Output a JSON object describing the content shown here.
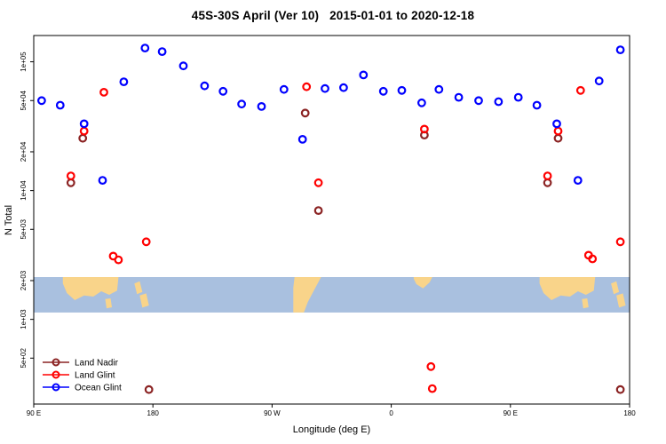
{
  "chart_data": {
    "type": "scatter",
    "title": "45S-30S April (Ver 10)   2015-01-01 to 2020-12-18",
    "xlabel": "Longitude (deg E)",
    "ylabel": "N Total",
    "x_axis": {
      "description": "longitude axis spanning 450 deg eastward from 90E, wrapping 180 -> 90W -> 0 -> 90E -> 180",
      "range_deg": [
        0,
        450
      ],
      "ticks": [
        {
          "pos": 0,
          "label": "90 E"
        },
        {
          "pos": 90,
          "label": "180"
        },
        {
          "pos": 180,
          "label": "90 W"
        },
        {
          "pos": 270,
          "label": "0"
        },
        {
          "pos": 360,
          "label": "90 E"
        },
        {
          "pos": 450,
          "label": "180"
        }
      ]
    },
    "y_axis": {
      "scale": "log",
      "range": [
        220,
        160000
      ],
      "ticks": [
        {
          "value": 500,
          "label": "5e+02"
        },
        {
          "value": 1000,
          "label": "1e+03"
        },
        {
          "value": 2000,
          "label": "2e+03"
        },
        {
          "value": 5000,
          "label": "5e+03"
        },
        {
          "value": 10000,
          "label": "1e+04"
        },
        {
          "value": 20000,
          "label": "2e+04"
        },
        {
          "value": 50000,
          "label": "5e+04"
        },
        {
          "value": 100000,
          "label": "1e+05"
        }
      ]
    },
    "series": [
      {
        "name": "Land Nadir",
        "color": "#8B2323",
        "points": [
          [
            28,
            11500
          ],
          [
            37,
            25500
          ],
          [
            87,
            285
          ],
          [
            205,
            40000
          ],
          [
            215,
            7000
          ],
          [
            295,
            27000
          ],
          [
            388,
            11500
          ],
          [
            396,
            25500
          ],
          [
            443,
            285
          ]
        ]
      },
      {
        "name": "Land Glint",
        "color": "#FF0000",
        "points": [
          [
            28,
            13000
          ],
          [
            38,
            29000
          ],
          [
            53,
            58000
          ],
          [
            60,
            3100
          ],
          [
            64,
            2900
          ],
          [
            85,
            4000
          ],
          [
            206,
            64000
          ],
          [
            215,
            11500
          ],
          [
            295,
            30000
          ],
          [
            300,
            430
          ],
          [
            301,
            290
          ],
          [
            388,
            13000
          ],
          [
            396,
            29000
          ],
          [
            413,
            60000
          ],
          [
            419,
            3150
          ],
          [
            422,
            2950
          ],
          [
            443,
            4000
          ]
        ]
      },
      {
        "name": "Ocean Glint",
        "color": "#0000FF",
        "points": [
          [
            6,
            50000
          ],
          [
            20,
            46000
          ],
          [
            38,
            33000
          ],
          [
            52,
            12000
          ],
          [
            68,
            70000
          ],
          [
            84,
            128000
          ],
          [
            97,
            120000
          ],
          [
            113,
            93000
          ],
          [
            129,
            65000
          ],
          [
            143,
            59000
          ],
          [
            157,
            47000
          ],
          [
            172,
            45000
          ],
          [
            189,
            61000
          ],
          [
            203,
            25000
          ],
          [
            220,
            62000
          ],
          [
            234,
            63000
          ],
          [
            249,
            79000
          ],
          [
            264,
            59000
          ],
          [
            278,
            60000
          ],
          [
            293,
            48000
          ],
          [
            306,
            61000
          ],
          [
            321,
            53000
          ],
          [
            336,
            50000
          ],
          [
            351,
            49000
          ],
          [
            366,
            53000
          ],
          [
            380,
            46000
          ],
          [
            395,
            33000
          ],
          [
            411,
            12000
          ],
          [
            427,
            71000
          ],
          [
            443,
            124000
          ]
        ]
      }
    ],
    "legend": {
      "position": "bottom-left",
      "items": [
        {
          "label": "Land Nadir",
          "color": "#8B2323"
        },
        {
          "label": "Land Glint",
          "color": "#FF0000"
        },
        {
          "label": "Ocean Glint",
          "color": "#0000FF"
        }
      ]
    },
    "map_band": {
      "description": "world-map strip of the 45S-30S latitude band drawn across the plot",
      "value_range": [
        1130,
        2130
      ],
      "ocean_color": "#a9c0df",
      "land_color": "#f9d48a",
      "land": [
        {
          "name": "australia",
          "pts": [
            [
              22,
              0
            ],
            [
              64,
              0
            ],
            [
              63,
              0.38
            ],
            [
              57,
              0.5
            ],
            [
              51,
              0.4
            ],
            [
              45,
              0.55
            ],
            [
              38,
              0.52
            ],
            [
              31,
              0.65
            ],
            [
              25,
              0.45
            ],
            [
              22,
              0.18
            ]
          ]
        },
        {
          "name": "tasmania",
          "pts": [
            [
              54,
              0.62
            ],
            [
              58,
              0.6
            ],
            [
              59,
              0.85
            ],
            [
              55,
              0.88
            ]
          ]
        },
        {
          "name": "new-zealand-north",
          "pts": [
            [
              76,
              0.18
            ],
            [
              80,
              0.12
            ],
            [
              82,
              0.42
            ],
            [
              78,
              0.48
            ]
          ]
        },
        {
          "name": "new-zealand-south",
          "pts": [
            [
              80,
              0.52
            ],
            [
              85,
              0.46
            ],
            [
              87,
              0.8
            ],
            [
              82,
              0.86
            ]
          ]
        },
        {
          "name": "south-america",
          "pts": [
            [
              197,
              0
            ],
            [
              217,
              0
            ],
            [
              212,
              0.35
            ],
            [
              207,
              0.7
            ],
            [
              204,
              1
            ],
            [
              196,
              1
            ],
            [
              196,
              0.3
            ]
          ]
        },
        {
          "name": "africa",
          "pts": [
            [
              287,
              0
            ],
            [
              301,
              0
            ],
            [
              299,
              0.15
            ],
            [
              294,
              0.32
            ],
            [
              289,
              0.2
            ],
            [
              287,
              0.05
            ]
          ]
        },
        {
          "name": "australia-2",
          "pts": [
            [
              382,
              0
            ],
            [
              424,
              0
            ],
            [
              423,
              0.38
            ],
            [
              417,
              0.5
            ],
            [
              411,
              0.4
            ],
            [
              405,
              0.55
            ],
            [
              398,
              0.52
            ],
            [
              391,
              0.65
            ],
            [
              385,
              0.45
            ],
            [
              382,
              0.18
            ]
          ]
        },
        {
          "name": "tasmania-2",
          "pts": [
            [
              414,
              0.62
            ],
            [
              418,
              0.6
            ],
            [
              419,
              0.85
            ],
            [
              415,
              0.88
            ]
          ]
        },
        {
          "name": "new-zealand-north-2",
          "pts": [
            [
              436,
              0.18
            ],
            [
              440,
              0.12
            ],
            [
              442,
              0.42
            ],
            [
              438,
              0.48
            ]
          ]
        },
        {
          "name": "new-zealand-south-2",
          "pts": [
            [
              440,
              0.52
            ],
            [
              445,
              0.46
            ],
            [
              447,
              0.8
            ],
            [
              442,
              0.86
            ]
          ]
        }
      ]
    }
  }
}
